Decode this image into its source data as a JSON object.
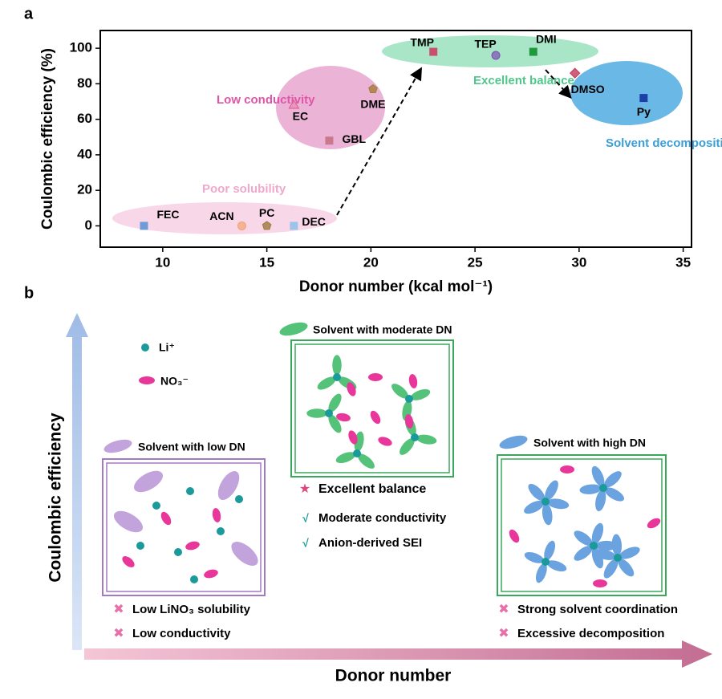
{
  "chart_data": {
    "type": "scatter",
    "panel_label": "a",
    "xlabel": "Donor number (kcal mol⁻¹)",
    "ylabel": "Coulombic efficiency (%)",
    "x": [
      9.1,
      13.8,
      15,
      16.3,
      18,
      16.3,
      20.1,
      23,
      26,
      27.8,
      29.8,
      33.1
    ],
    "values": [
      0,
      0,
      0,
      0,
      48,
      68,
      77,
      98,
      96,
      98,
      86,
      72
    ],
    "labels": [
      "FEC",
      "ACN",
      "PC",
      "DEC",
      "GBL",
      "EC",
      "DME",
      "TMP",
      "TEP",
      "DMI",
      "DMSO",
      "Py"
    ],
    "colors": [
      "#6f9bd6",
      "#f2a470",
      "#9c7a3c",
      "#9cc3ea",
      "#c9788e",
      "#e0588a",
      "#a67c3c",
      "#c8506e",
      "#7a4fb0",
      "#1f9a3a",
      "#c23a5a",
      "#1c3fa8"
    ],
    "markers": [
      "square",
      "circle",
      "pentagon",
      "square",
      "square",
      "triangle",
      "pentagon",
      "square",
      "circle",
      "square",
      "diamond",
      "square"
    ],
    "annotations": [
      "Poor solubility",
      "Low conductivity",
      "Excellent balance",
      "Solvent decomposition"
    ],
    "xlim": [
      7,
      35.4
    ],
    "ylim": [
      -12,
      110
    ],
    "xticks": [
      10,
      15,
      20,
      25,
      30,
      35
    ],
    "yticks": [
      0,
      20,
      40,
      60,
      80,
      100
    ]
  },
  "panel_b": {
    "panel_label": "b",
    "y_axis": "Coulombic efficiency",
    "x_axis": "Donor number",
    "legend": [
      "Li⁺",
      "NO₃⁻"
    ],
    "low": {
      "title": "Solvent with low DN",
      "notes": [
        "Low LiNO₃ solubility",
        "Low conductivity"
      ]
    },
    "moderate": {
      "title": "Solvent with moderate DN",
      "notes": [
        "Excellent balance",
        "Moderate conductivity",
        "Anion-derived SEI"
      ]
    },
    "high": {
      "title": "Solvent with high DN",
      "notes": [
        "Strong solvent coordination",
        "Excessive decomposition"
      ]
    }
  }
}
